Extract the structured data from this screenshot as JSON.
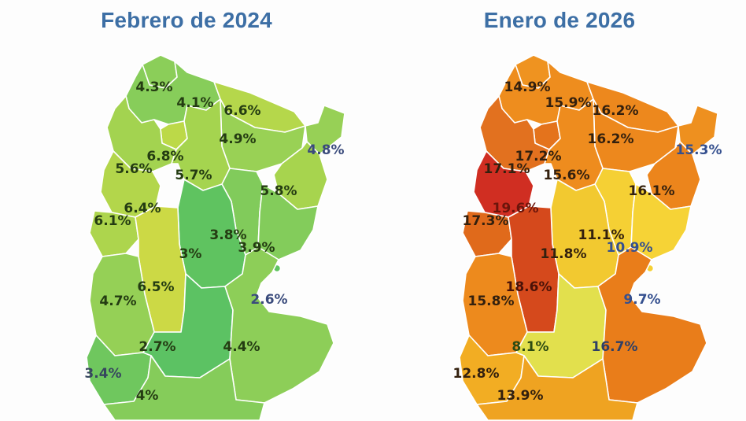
{
  "page": {
    "title_color": "#3d6fa5",
    "background": "#fdfdfd"
  },
  "maps": [
    {
      "id": "febrero-2024",
      "title": "Febrero de 2024",
      "unit": "%",
      "regions": {
        "jujuy": {
          "label": "4.3%",
          "fill": "#8bce59",
          "label_color": "#243c12"
        },
        "salta": {
          "label": "4.1%",
          "fill": "#87cd5a",
          "label_color": "#243c12"
        },
        "formosa": {
          "label": "6.6%",
          "fill": "#b5d74b",
          "label_color": "#243c12"
        },
        "chaco": {
          "label": "4.9%",
          "fill": "#99d155",
          "label_color": "#243c12"
        },
        "misiones": {
          "label": "4.8%",
          "fill": "#97d056",
          "label_color": "#3a4b7c"
        },
        "tucuman": {
          "label": "6.8%",
          "fill": "#bcd948",
          "label_color": "#243c12"
        },
        "catamarca": {
          "label": "5.6%",
          "fill": "#a3d350",
          "label_color": "#243c12"
        },
        "santiago": {
          "label": "5.7%",
          "fill": "#a5d44f",
          "label_color": "#243c12"
        },
        "corrientes": {
          "label": "5.8%",
          "fill": "#a7d44e",
          "label_color": "#243c12"
        },
        "larioja": {
          "label": "6.4%",
          "fill": "#b3d64b",
          "label_color": "#243c12"
        },
        "sanjuan": {
          "label": "6.1%",
          "fill": "#add54d",
          "label_color": "#243c12"
        },
        "santafe": {
          "label": "3.8%",
          "fill": "#81cb5b",
          "label_color": "#243c12"
        },
        "cordoba": {
          "label": "3%",
          "fill": "#5fc360",
          "label_color": "#243c12"
        },
        "entrerios": {
          "label": "3.9%",
          "fill": "#83cc5b",
          "label_color": "#243c12"
        },
        "sanluis": {
          "label": "6.5%",
          "fill": "#ccd945",
          "label_color": "#243c12"
        },
        "mendoza": {
          "label": "4.7%",
          "fill": "#95d056",
          "label_color": "#243c12"
        },
        "caba": {
          "label": "2.6%",
          "fill": "#5fc360",
          "label_color": "#3a4b7c"
        },
        "lapampa": {
          "label": "2.7%",
          "fill": "#5cc263",
          "label_color": "#243c12"
        },
        "buenosaires": {
          "label": "4.4%",
          "fill": "#8dce58",
          "label_color": "#243c12"
        },
        "neuquen": {
          "label": "3.4%",
          "fill": "#6fc75e",
          "label_color": "#37465f"
        },
        "rionegro": {
          "label": "4%",
          "fill": "#85cc5a",
          "label_color": "#243c12"
        }
      }
    },
    {
      "id": "enero-2026",
      "title": "Enero de 2026",
      "unit": "%",
      "regions": {
        "jujuy": {
          "label": "14.9%",
          "fill": "#ef9320",
          "label_color": "#33200e"
        },
        "salta": {
          "label": "15.9%",
          "fill": "#ee8d1e",
          "label_color": "#33200e"
        },
        "formosa": {
          "label": "16.2%",
          "fill": "#ed881d",
          "label_color": "#33200e"
        },
        "chaco": {
          "label": "16.2%",
          "fill": "#ed881d",
          "label_color": "#33200e"
        },
        "misiones": {
          "label": "15.3%",
          "fill": "#ee901f",
          "label_color": "#35508f"
        },
        "tucuman": {
          "label": "17.2%",
          "fill": "#e4731c",
          "label_color": "#33200e"
        },
        "catamarca": {
          "label": "17.1%",
          "fill": "#e2711f",
          "label_color": "#33200e"
        },
        "santiago": {
          "label": "15.6%",
          "fill": "#ee8c1e",
          "label_color": "#33200e"
        },
        "corrientes": {
          "label": "16.1%",
          "fill": "#ec851c",
          "label_color": "#33200e"
        },
        "larioja": {
          "label": "19.6%",
          "fill": "#d02e22",
          "label_color": "#6b150b"
        },
        "sanjuan": {
          "label": "17.3%",
          "fill": "#e06a1b",
          "label_color": "#33200e"
        },
        "santafe": {
          "label": "11.1%",
          "fill": "#f5d034",
          "label_color": "#33200e"
        },
        "cordoba": {
          "label": "11.8%",
          "fill": "#f2c930",
          "label_color": "#33200e"
        },
        "entrerios": {
          "label": "10.9%",
          "fill": "#f6d336",
          "label_color": "#35508f"
        },
        "sanluis": {
          "label": "18.6%",
          "fill": "#d5491c",
          "label_color": "#4a1208"
        },
        "mendoza": {
          "label": "15.8%",
          "fill": "#ed8a1d",
          "label_color": "#33200e"
        },
        "caba": {
          "label": "9.7%",
          "fill": "#f5d034",
          "label_color": "#35508f"
        },
        "lapampa": {
          "label": "8.1%",
          "fill": "#e2e04d",
          "label_color": "#2c4a12"
        },
        "buenosaires": {
          "label": "16.7%",
          "fill": "#e97d1a",
          "label_color": "#2e3f66"
        },
        "neuquen": {
          "label": "12.8%",
          "fill": "#f2ad23",
          "label_color": "#33200e"
        },
        "rionegro": {
          "label": "13.9%",
          "fill": "#efa321",
          "label_color": "#33200e"
        }
      }
    }
  ],
  "chart_data": {
    "type": "heatmap",
    "subtype": "choropleth — two side-by-side maps of Argentine provinces",
    "title": "",
    "unit": "%",
    "legend": "none",
    "categories": [
      "jujuy",
      "salta",
      "formosa",
      "chaco",
      "misiones",
      "tucuman",
      "catamarca",
      "santiago-del-estero",
      "corrientes",
      "la-rioja",
      "san-juan",
      "santa-fe",
      "cordoba",
      "entre-rios",
      "san-luis",
      "mendoza",
      "caba",
      "la-pampa",
      "buenos-aires",
      "neuquen",
      "rio-negro"
    ],
    "series": [
      {
        "name": "Febrero de 2024",
        "values": [
          4.3,
          4.1,
          6.6,
          4.9,
          4.8,
          6.8,
          5.6,
          5.7,
          5.8,
          6.4,
          6.1,
          3.8,
          3.0,
          3.9,
          6.5,
          4.7,
          2.6,
          2.7,
          4.4,
          3.4,
          4.0
        ]
      },
      {
        "name": "Enero de 2026",
        "values": [
          14.9,
          15.9,
          16.2,
          16.2,
          15.3,
          17.2,
          17.1,
          15.6,
          16.1,
          19.6,
          17.3,
          11.1,
          11.8,
          10.9,
          18.6,
          15.8,
          9.7,
          8.1,
          16.7,
          12.8,
          13.9
        ]
      }
    ],
    "color_scale_left_map": "green (low) to yellow-green (high)",
    "color_scale_right_map": "yellow (low) through orange to red (high)"
  }
}
